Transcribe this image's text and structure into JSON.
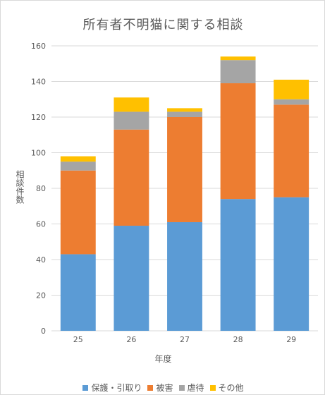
{
  "chart_data": {
    "type": "bar",
    "stacked": true,
    "title": "所有者不明猫に関する相談",
    "xlabel": "年度",
    "ylabel": "相談件数",
    "ylim": [
      0,
      160
    ],
    "yticks": [
      0,
      20,
      40,
      60,
      80,
      100,
      120,
      140,
      160
    ],
    "grid": true,
    "legend_position": "bottom",
    "categories": [
      "25",
      "26",
      "27",
      "28",
      "29"
    ],
    "series": [
      {
        "name": "保護・引取り",
        "color": "#5b9bd5",
        "values": [
          43,
          59,
          61,
          74,
          75
        ]
      },
      {
        "name": "被害",
        "color": "#ed7d31",
        "values": [
          47,
          54,
          59,
          65,
          52
        ]
      },
      {
        "name": "虐待",
        "color": "#a5a5a5",
        "values": [
          5,
          10,
          3,
          13,
          3
        ]
      },
      {
        "name": "その他",
        "color": "#ffc000",
        "values": [
          3,
          8,
          2,
          2,
          11
        ]
      }
    ]
  }
}
